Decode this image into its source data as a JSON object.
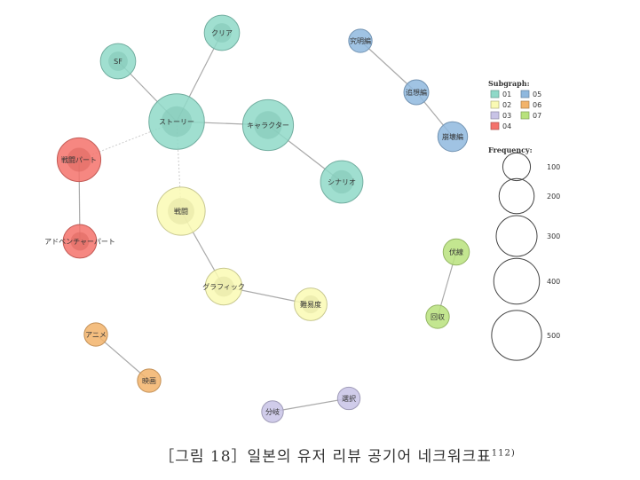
{
  "colors": {
    "01": "#8fd9c8",
    "02": "#fafab4",
    "03": "#c8c3e6",
    "04": "#f4726b",
    "05": "#8fb8de",
    "06": "#f2b36a",
    "07": "#b8e27c",
    "edge": "#aaaaaa",
    "dotted_edge": "#cccccc"
  },
  "legend": {
    "subgraph_title": "Subgraph:",
    "subgraphs": [
      "01",
      "02",
      "03",
      "04",
      "05",
      "06",
      "07"
    ],
    "frequency_title": "Frequency:",
    "frequencies": [
      100,
      200,
      300,
      400,
      500
    ]
  },
  "nodes": [
    {
      "id": "story",
      "label": "ストーリー",
      "group": "01",
      "frequency": 500
    },
    {
      "id": "sf",
      "label": "SF",
      "group": "01",
      "frequency": 150
    },
    {
      "id": "clear",
      "label": "クリア",
      "group": "01",
      "frequency": 150
    },
    {
      "id": "character",
      "label": "キャラクター",
      "group": "01",
      "frequency": 400
    },
    {
      "id": "scenario",
      "label": "シナリオ",
      "group": "01",
      "frequency": 250
    },
    {
      "id": "battle",
      "label": "戦闘",
      "group": "02",
      "frequency": 350
    },
    {
      "id": "graphic",
      "label": "グラフィック",
      "group": "02",
      "frequency": 170
    },
    {
      "id": "difficulty",
      "label": "難易度",
      "group": "02",
      "frequency": 120
    },
    {
      "id": "battlepart",
      "label": "戦闘パート",
      "group": "04",
      "frequency": 270
    },
    {
      "id": "adventurepart",
      "label": "アドベンチャーパート",
      "group": "04",
      "frequency": 130
    },
    {
      "id": "kyumei",
      "label": "究明編",
      "group": "05",
      "frequency": 40
    },
    {
      "id": "tsuiso",
      "label": "追想編",
      "group": "05",
      "frequency": 50
    },
    {
      "id": "hokai",
      "label": "崩壊編",
      "group": "05",
      "frequency": 90
    },
    {
      "id": "anime",
      "label": "アニメ",
      "group": "06",
      "frequency": 40
    },
    {
      "id": "eiga",
      "label": "映画",
      "group": "06",
      "frequency": 40
    },
    {
      "id": "fukusen",
      "label": "伏線",
      "group": "07",
      "frequency": 60
    },
    {
      "id": "kaishu",
      "label": "回収",
      "group": "07",
      "frequency": 40
    },
    {
      "id": "bunki",
      "label": "分岐",
      "group": "03",
      "frequency": 30
    },
    {
      "id": "sentaku",
      "label": "選択",
      "group": "03",
      "frequency": 35
    }
  ],
  "edges": [
    {
      "source": "story",
      "target": "sf"
    },
    {
      "source": "story",
      "target": "clear"
    },
    {
      "source": "story",
      "target": "character"
    },
    {
      "source": "character",
      "target": "scenario"
    },
    {
      "source": "story",
      "target": "battlepart",
      "style": "dotted"
    },
    {
      "source": "story",
      "target": "battle",
      "style": "dotted"
    },
    {
      "source": "battlepart",
      "target": "adventurepart"
    },
    {
      "source": "battle",
      "target": "graphic"
    },
    {
      "source": "graphic",
      "target": "difficulty"
    },
    {
      "source": "kyumei",
      "target": "tsuiso"
    },
    {
      "source": "tsuiso",
      "target": "hokai"
    },
    {
      "source": "anime",
      "target": "eiga"
    },
    {
      "source": "fukusen",
      "target": "kaishu"
    },
    {
      "source": "bunki",
      "target": "sentaku"
    }
  ],
  "caption": {
    "text": "［그림 18］일본의 유저 리뷰 공기어 네크워크표",
    "note": "112)"
  }
}
